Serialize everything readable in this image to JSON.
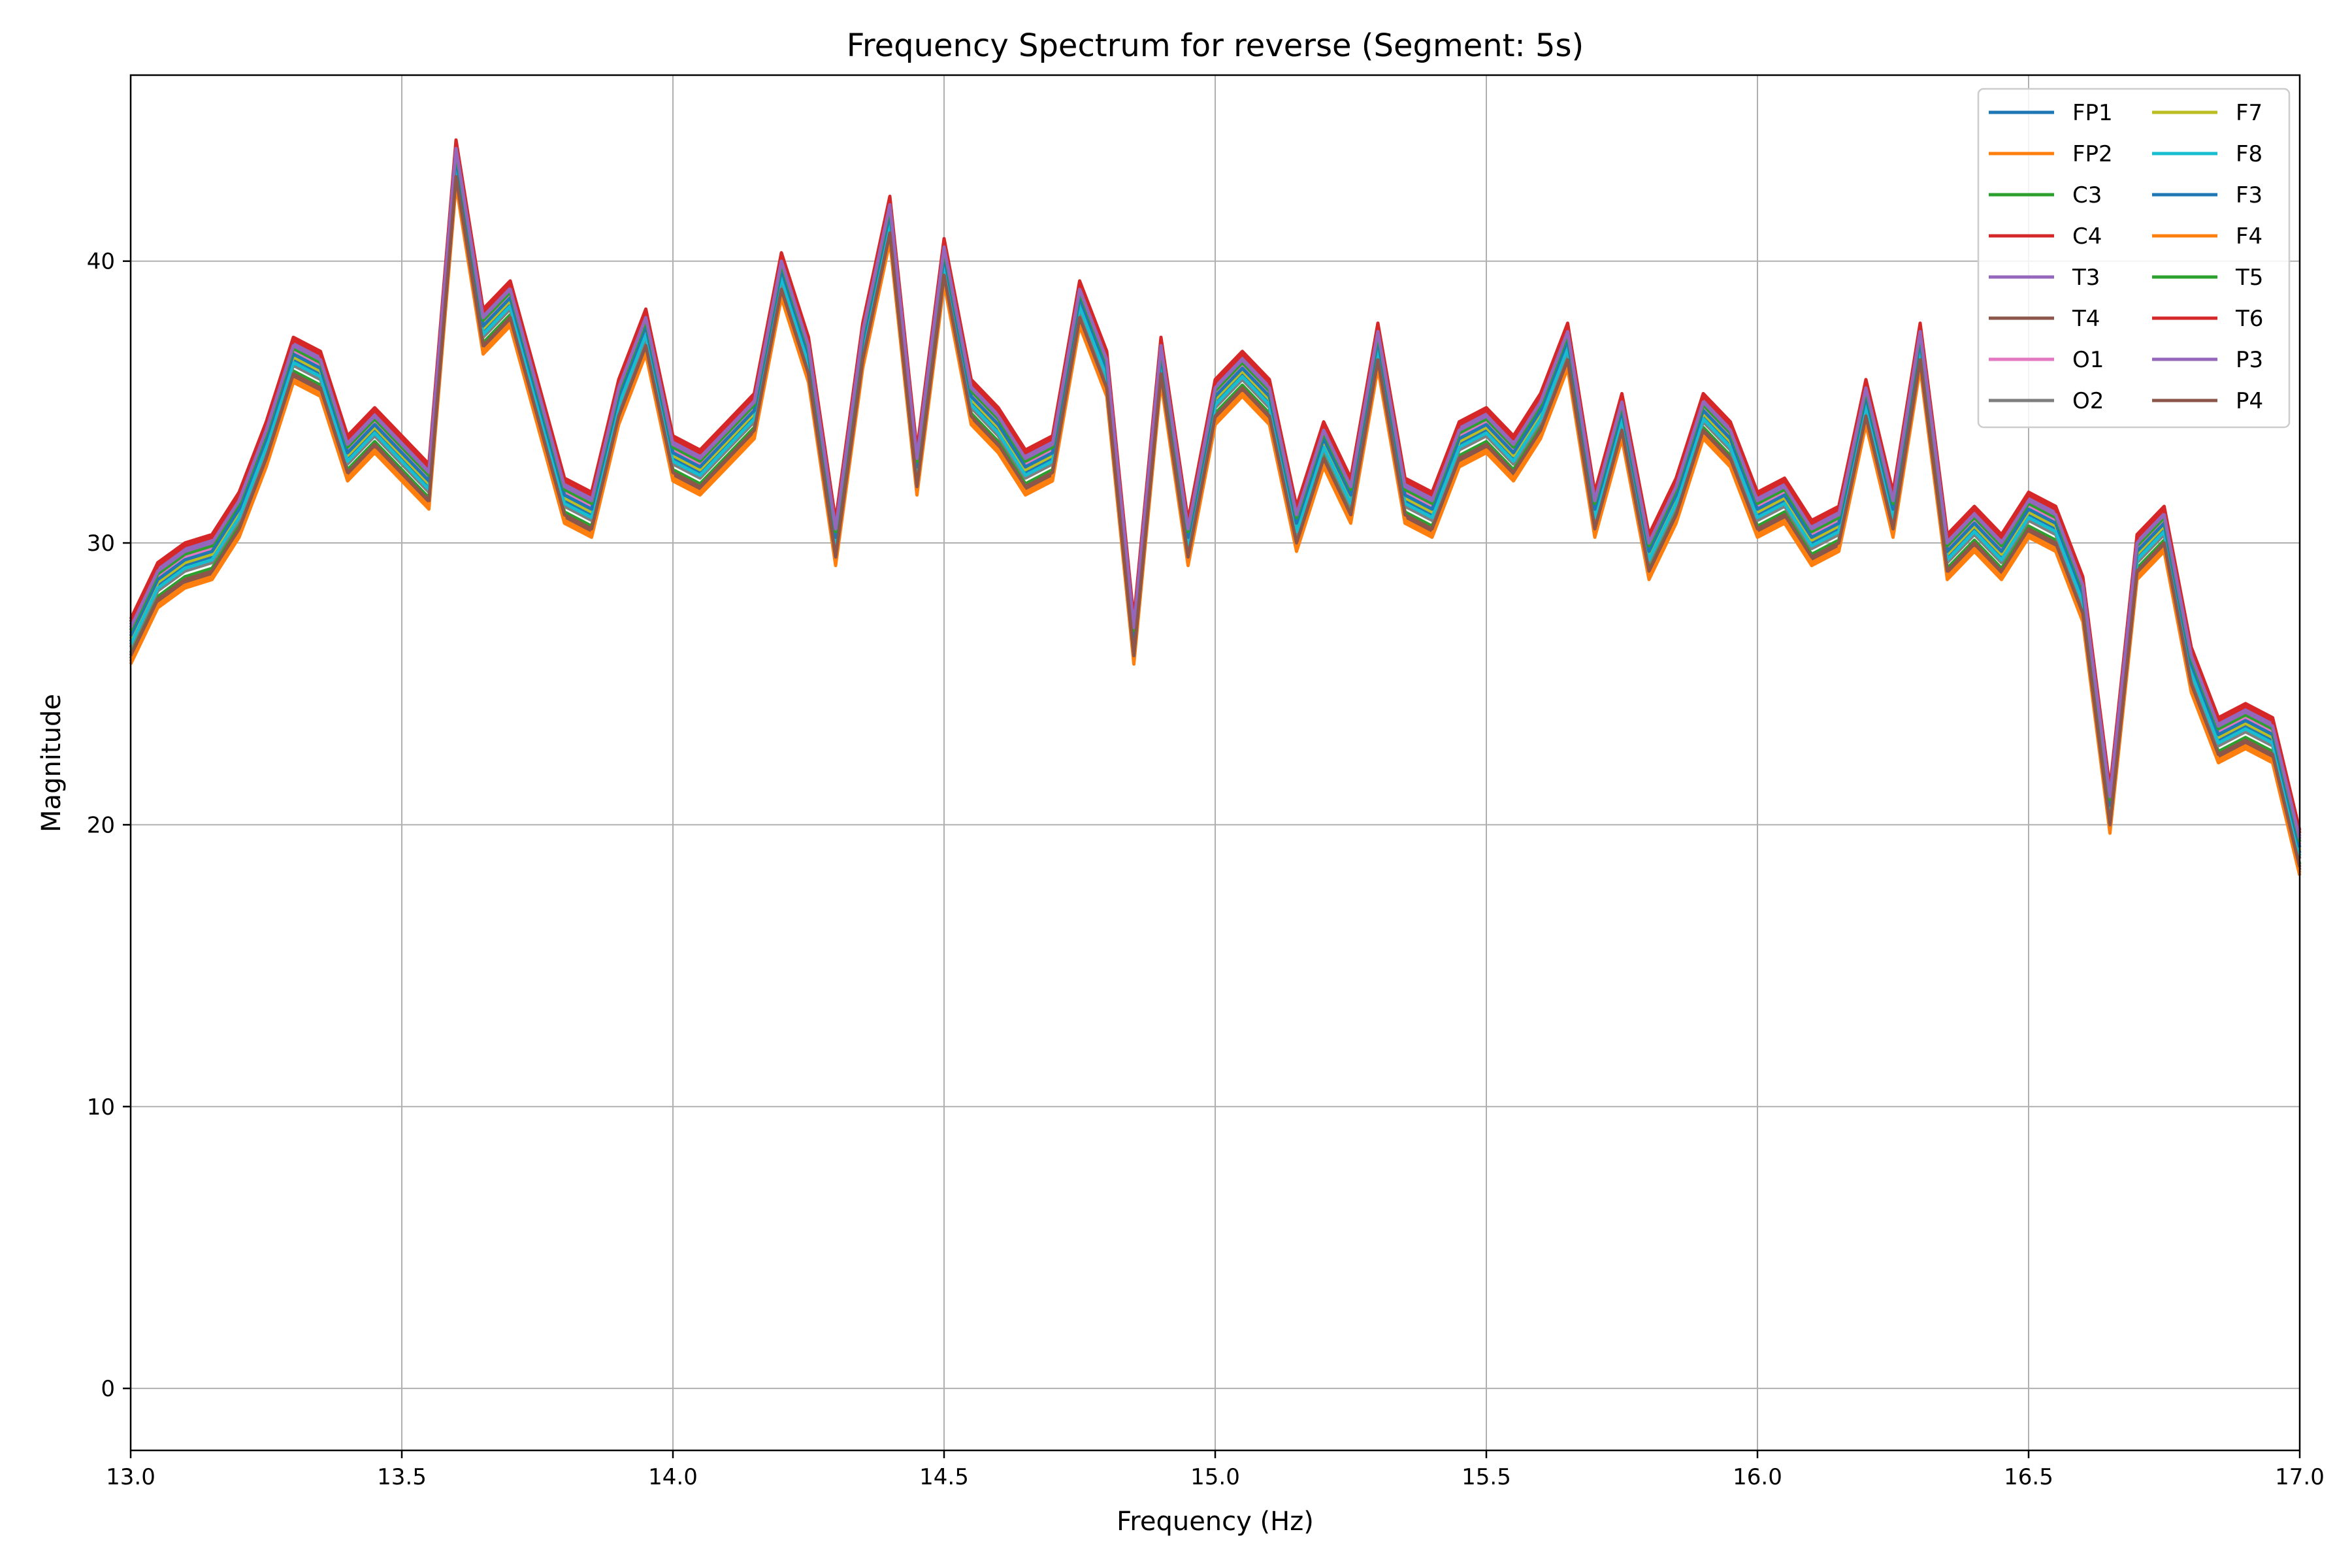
{
  "chart_data": {
    "type": "line",
    "title": "Frequency Spectrum for reverse (Segment: 5s)",
    "xlabel": "Frequency (Hz)",
    "ylabel": "Magnitude",
    "xlim": [
      13.0,
      17.0
    ],
    "ylim": [
      -2.2,
      46.6
    ],
    "xticks": [
      13.0,
      13.5,
      14.0,
      14.5,
      15.0,
      15.5,
      16.0,
      16.5,
      17.0
    ],
    "xtick_labels": [
      "13.0",
      "13.5",
      "14.0",
      "14.5",
      "15.0",
      "15.5",
      "16.0",
      "16.5",
      "17.0"
    ],
    "yticks": [
      0,
      10,
      20,
      30,
      40
    ],
    "ytick_labels": [
      "0",
      "10",
      "20",
      "30",
      "40"
    ],
    "grid": true,
    "legend_position": "top-right",
    "legend_columns": 2,
    "x": [
      13.0,
      13.05,
      13.1,
      13.15,
      13.2,
      13.25,
      13.3,
      13.35,
      13.4,
      13.45,
      13.5,
      13.55,
      13.6,
      13.65,
      13.7,
      13.75,
      13.8,
      13.85,
      13.9,
      13.95,
      14.0,
      14.05,
      14.1,
      14.15,
      14.2,
      14.25,
      14.3,
      14.35,
      14.4,
      14.45,
      14.5,
      14.55,
      14.6,
      14.65,
      14.7,
      14.75,
      14.8,
      14.85,
      14.9,
      14.95,
      15.0,
      15.05,
      15.1,
      15.15,
      15.2,
      15.25,
      15.3,
      15.35,
      15.4,
      15.45,
      15.5,
      15.55,
      15.6,
      15.65,
      15.7,
      15.75,
      15.8,
      15.85,
      15.9,
      15.95,
      16.0,
      16.05,
      16.1,
      16.15,
      16.2,
      16.25,
      16.3,
      16.35,
      16.4,
      16.45,
      16.5,
      16.55,
      16.6,
      16.65,
      16.7,
      16.75,
      16.8,
      16.85,
      16.9,
      16.95,
      17.0
    ],
    "base": [
      26.5,
      28.5,
      29.2,
      29.5,
      31.0,
      33.5,
      36.5,
      36.0,
      33.0,
      34.0,
      33.0,
      32.0,
      43.5,
      37.5,
      38.5,
      35.0,
      31.5,
      31.0,
      35.0,
      37.5,
      33.0,
      32.5,
      33.5,
      34.5,
      39.5,
      36.5,
      30.0,
      37.0,
      41.5,
      32.5,
      40.0,
      35.0,
      34.0,
      32.5,
      33.0,
      38.5,
      36.0,
      26.5,
      36.5,
      30.0,
      35.0,
      36.0,
      35.0,
      30.5,
      33.5,
      31.5,
      37.0,
      31.5,
      31.0,
      33.5,
      34.0,
      33.0,
      34.5,
      37.0,
      31.0,
      34.5,
      29.5,
      31.5,
      34.5,
      33.5,
      31.0,
      31.5,
      30.0,
      30.5,
      35.0,
      31.0,
      37.0,
      29.5,
      30.5,
      29.5,
      31.0,
      30.5,
      28.0,
      20.5,
      29.5,
      30.5,
      25.5,
      23.0,
      23.5,
      23.0,
      19.0
    ],
    "series": [
      {
        "name": "FP1",
        "color": "#1f77b4",
        "offset": 0.0
      },
      {
        "name": "FP2",
        "color": "#ff7f0e",
        "offset": -0.8
      },
      {
        "name": "C3",
        "color": "#2ca02c",
        "offset": -0.4
      },
      {
        "name": "C4",
        "color": "#d62728",
        "offset": 0.8
      },
      {
        "name": "T3",
        "color": "#9467bd",
        "offset": 0.6
      },
      {
        "name": "T4",
        "color": "#8c564b",
        "offset": -0.6
      },
      {
        "name": "O1",
        "color": "#e377c2",
        "offset": 0.3
      },
      {
        "name": "O2",
        "color": "#7f7f7f",
        "offset": -0.2
      },
      {
        "name": "F7",
        "color": "#bcbd22",
        "offset": 0.1
      },
      {
        "name": "F8",
        "color": "#17becf",
        "offset": -0.1
      },
      {
        "name": "F3",
        "color": "#1f77b4",
        "offset": 0.2
      },
      {
        "name": "F4",
        "color": "#ff7f0e",
        "offset": -0.7
      },
      {
        "name": "T5",
        "color": "#2ca02c",
        "offset": 0.4
      },
      {
        "name": "T6",
        "color": "#d62728",
        "offset": 0.7
      },
      {
        "name": "P3",
        "color": "#9467bd",
        "offset": 0.5
      },
      {
        "name": "P4",
        "color": "#8c564b",
        "offset": -0.5
      }
    ]
  }
}
